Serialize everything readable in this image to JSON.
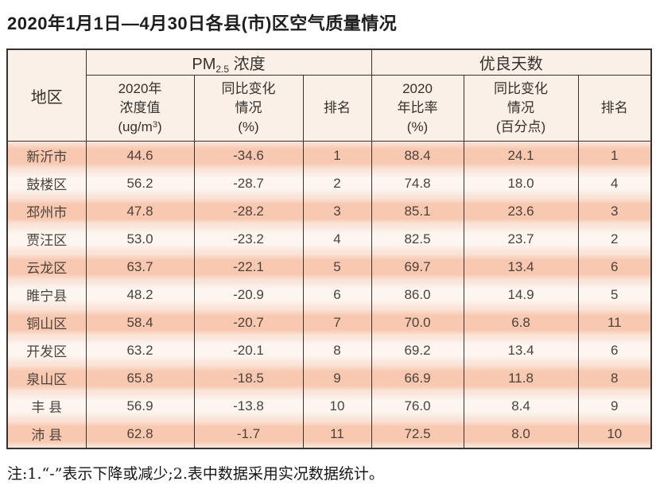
{
  "title": "2020年1月1日—4月30日各县(市)区空气质量情况",
  "table": {
    "header": {
      "region": "地区",
      "pm_group": {
        "prefix": "PM",
        "sub": "2.5",
        "suffix": " 浓度"
      },
      "good_group": "优良天数",
      "pm_value": {
        "line1": "2020年",
        "line2": "浓度值",
        "unit_prefix": "(ug/m",
        "unit_sup": "3",
        "unit_suffix": ")"
      },
      "pm_change": {
        "line1": "同比变化",
        "line2": "情况",
        "line3": "(%)"
      },
      "pm_rank": "排名",
      "good_ratio": {
        "line1": "2020",
        "line2": "年比率",
        "line3": "(%)"
      },
      "good_change": {
        "line1": "同比变化",
        "line2": "情况",
        "line3": "(百分点)"
      },
      "good_rank": "排名"
    },
    "rows": [
      [
        "新沂市",
        "44.6",
        "-34.6",
        "1",
        "88.4",
        "24.1",
        "1"
      ],
      [
        "鼓楼区",
        "56.2",
        "-28.7",
        "2",
        "74.8",
        "18.0",
        "4"
      ],
      [
        "邳州市",
        "47.8",
        "-28.2",
        "3",
        "85.1",
        "23.6",
        "3"
      ],
      [
        "贾汪区",
        "53.0",
        "-23.2",
        "4",
        "82.5",
        "23.7",
        "2"
      ],
      [
        "云龙区",
        "63.7",
        "-22.1",
        "5",
        "69.7",
        "13.4",
        "6"
      ],
      [
        "睢宁县",
        "48.2",
        "-20.9",
        "6",
        "86.0",
        "14.9",
        "5"
      ],
      [
        "铜山区",
        "58.4",
        "-20.7",
        "7",
        "70.0",
        "6.8",
        "11"
      ],
      [
        "开发区",
        "63.2",
        "-20.1",
        "8",
        "69.2",
        "13.4",
        "6"
      ],
      [
        "泉山区",
        "65.8",
        "-18.5",
        "9",
        "66.9",
        "11.8",
        "8"
      ],
      [
        "丰 县",
        "56.9",
        "-13.8",
        "10",
        "76.0",
        "8.4",
        "9"
      ],
      [
        "沛 县",
        "62.8",
        "-1.7",
        "11",
        "72.5",
        "8.0",
        "10"
      ]
    ]
  },
  "note": "注:1.“-”表示下降或减少;2.表中数据采用实况数据统计。",
  "colors": {
    "border": "#35322f",
    "header_bg": "#faf0e7",
    "row_odd": "#f8c8b0",
    "row_odd_edge": "#fbe7dc",
    "row_even": "#fdf5f0",
    "row_even_edge": "#f9e2d6",
    "text": "#4c423c",
    "title_text": "#1d1d1d"
  }
}
